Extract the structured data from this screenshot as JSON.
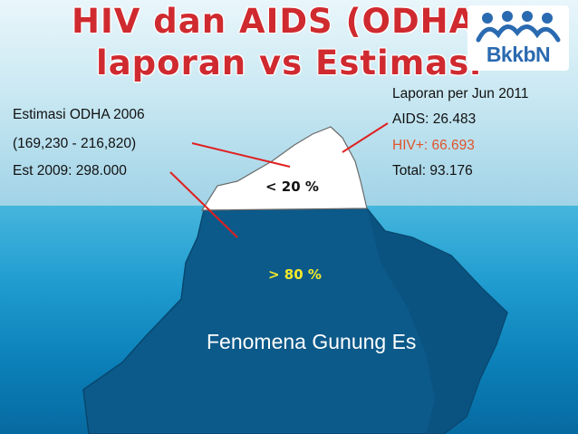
{
  "title": {
    "line1": "HIV dan AIDS (ODHA):",
    "line2": "laporan vs Estimasi"
  },
  "logo": {
    "text": "BkkbN"
  },
  "estimate": {
    "line1": "Estimasi ODHA 2006",
    "line2": "(169,230 - 216,820)",
    "line3": "Est 2009: 298.000"
  },
  "report": {
    "heading": "Laporan per Jun 2011",
    "aids": "AIDS: 26.483",
    "hiv": "HIV+: 66.693",
    "total": "Total: 93.176"
  },
  "iceberg": {
    "above_label": "< 20 %",
    "below_label": "> 80 %",
    "caption": "Fenomena Gunung Es"
  },
  "colors": {
    "title_red": "#cf2a2f",
    "hiv_orange": "#e0542b",
    "below_label_yellow": "#f2ea2a",
    "pointer_red": "#e02020",
    "iceberg_underwater": "#0c5a8a",
    "logo_blue": "#2a6ab0"
  }
}
